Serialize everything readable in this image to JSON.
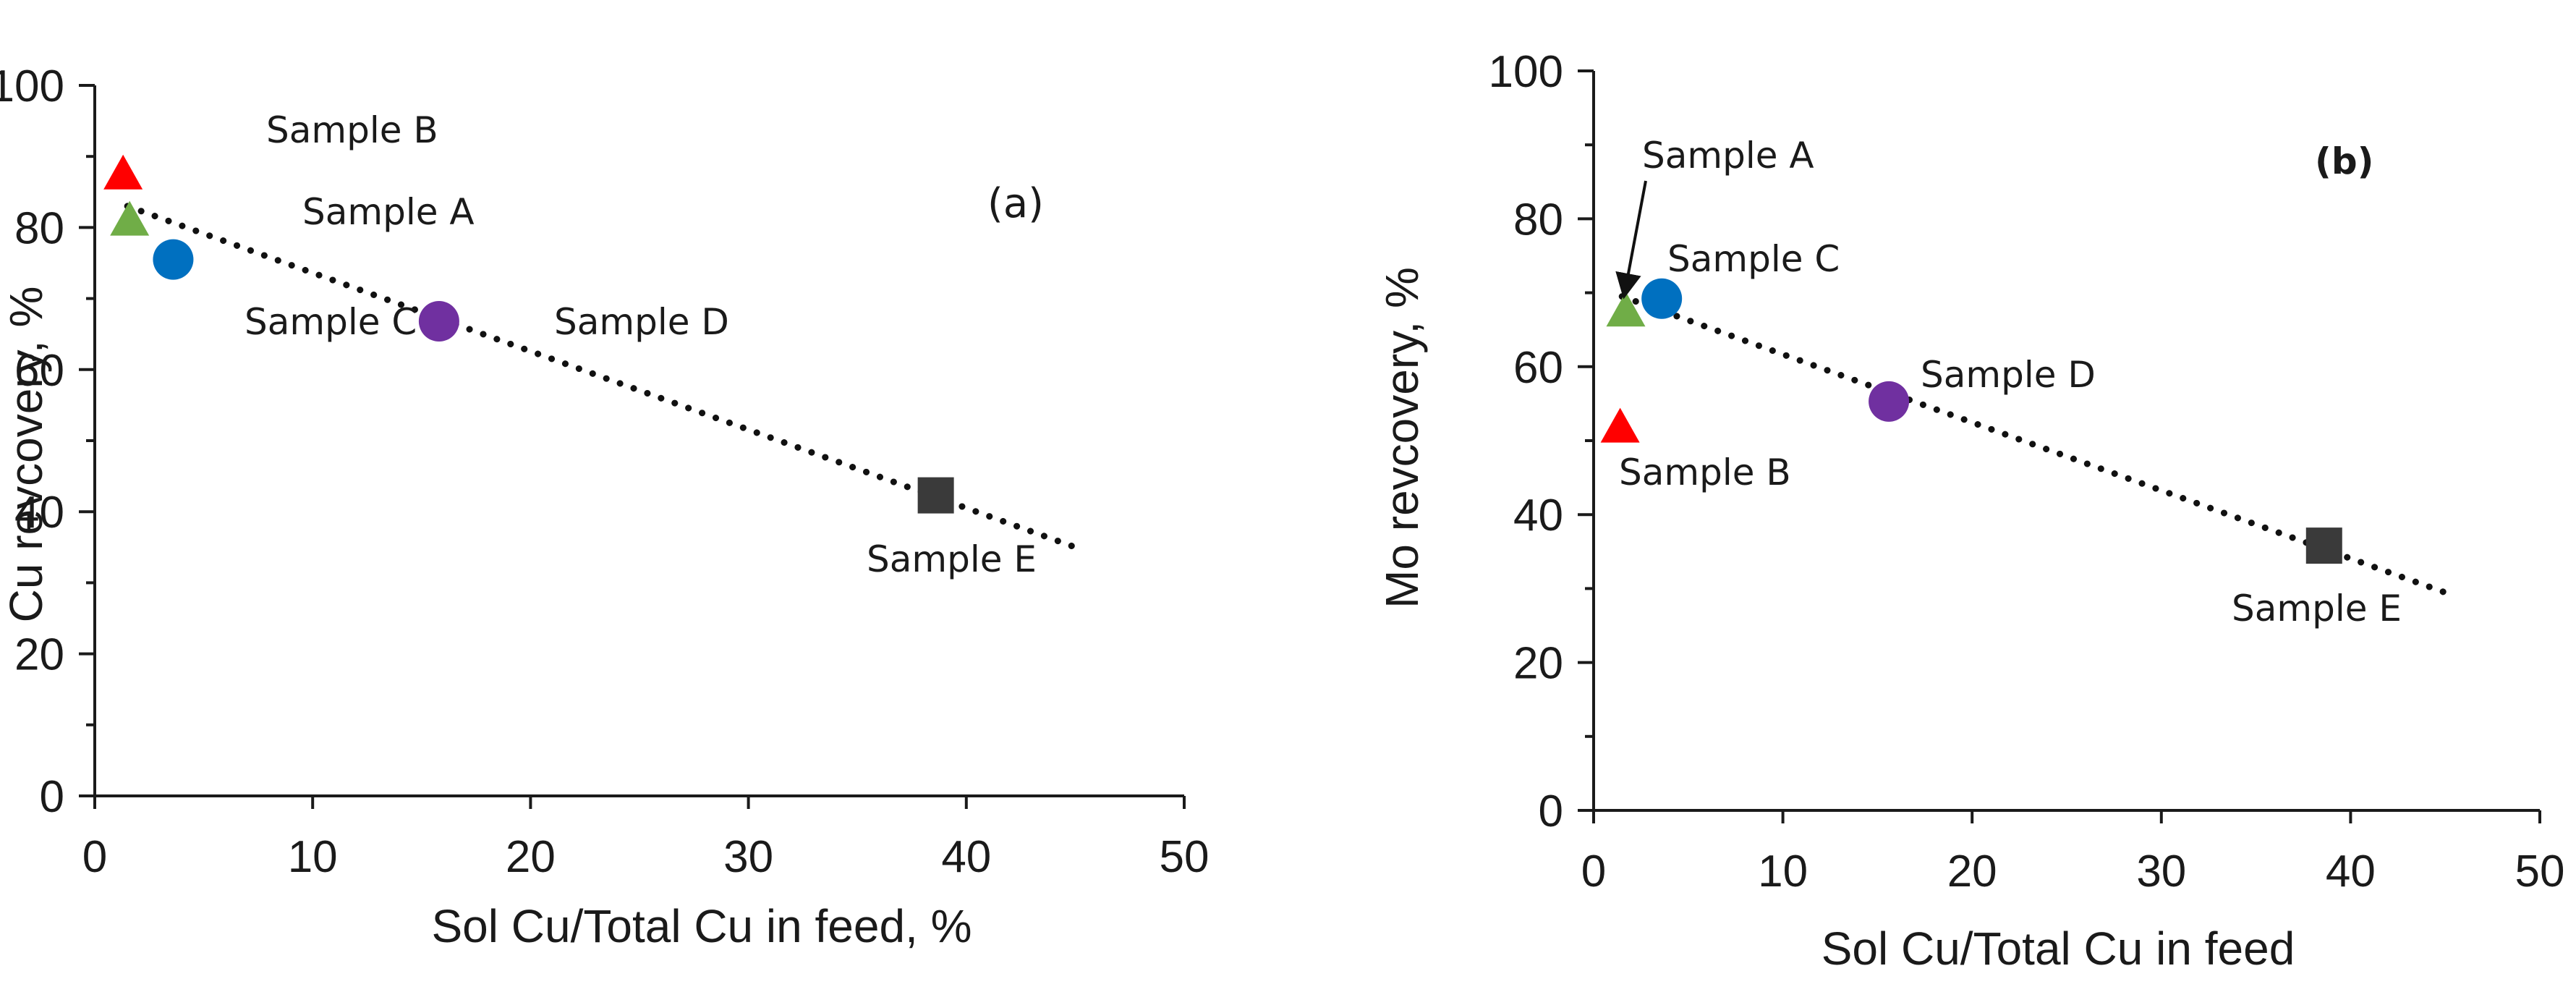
{
  "chart_data": [
    {
      "type": "scatter",
      "panel_tag": "(a)",
      "tag_bold": false,
      "xlabel": "Sol Cu/Total Cu  in feed, %",
      "ylabel": "Cu revcovery, %",
      "xlim": [
        0,
        50
      ],
      "ylim": [
        0,
        100
      ],
      "xticks": [
        0,
        10,
        20,
        30,
        40,
        50
      ],
      "yticks": [
        0,
        20,
        40,
        60,
        80,
        100
      ],
      "xtick_labels": [
        "0",
        "10",
        "20",
        "30",
        "40",
        "50"
      ],
      "ytick_labels": [
        "0",
        "20",
        "40",
        "60",
        "80",
        "100"
      ],
      "points": [
        {
          "name": "Sample B",
          "x": 1.3,
          "y": 87.5,
          "marker": "triangle",
          "color": "#ff0000"
        },
        {
          "name": "Sample A",
          "x": 1.6,
          "y": 81.0,
          "marker": "triangle",
          "color": "#70ad47"
        },
        {
          "name": "Sample C",
          "x": 3.6,
          "y": 75.5,
          "marker": "circle",
          "color": "#0070c0"
        },
        {
          "name": "Sample D",
          "x": 15.8,
          "y": 66.8,
          "marker": "circle",
          "color": "#7030a0"
        },
        {
          "name": "Sample E",
          "x": 38.6,
          "y": 42.3,
          "marker": "square",
          "color": "#3a3a3a"
        }
      ],
      "trendline": {
        "x": [
          1.5,
          45
        ],
        "y": [
          83,
          35
        ]
      }
    },
    {
      "type": "scatter",
      "panel_tag": "(b)",
      "tag_bold": true,
      "xlabel": "Sol Cu/Total Cu in feed",
      "ylabel": "Mo revcovery, %",
      "xlim": [
        0,
        50
      ],
      "ylim": [
        0,
        100
      ],
      "xticks": [
        0,
        10,
        20,
        30,
        40,
        50
      ],
      "yticks": [
        0,
        20,
        40,
        60,
        80,
        100
      ],
      "xtick_labels": [
        "0",
        "10",
        "20",
        "30",
        "40",
        "50"
      ],
      "ytick_labels": [
        "0",
        "20",
        "40",
        "60",
        "80",
        "100"
      ],
      "points": [
        {
          "name": "Sample A",
          "x": 1.7,
          "y": 67.5,
          "marker": "triangle",
          "color": "#70ad47"
        },
        {
          "name": "Sample C",
          "x": 3.6,
          "y": 69.2,
          "marker": "circle",
          "color": "#0070c0"
        },
        {
          "name": "Sample B",
          "x": 1.4,
          "y": 51.8,
          "marker": "triangle",
          "color": "#ff0000"
        },
        {
          "name": "Sample D",
          "x": 15.6,
          "y": 55.3,
          "marker": "circle",
          "color": "#7030a0"
        },
        {
          "name": "Sample E",
          "x": 38.6,
          "y": 35.8,
          "marker": "square",
          "color": "#3a3a3a"
        }
      ],
      "trendline": {
        "x": [
          1.5,
          45.5
        ],
        "y": [
          69.5,
          29
        ]
      }
    }
  ]
}
